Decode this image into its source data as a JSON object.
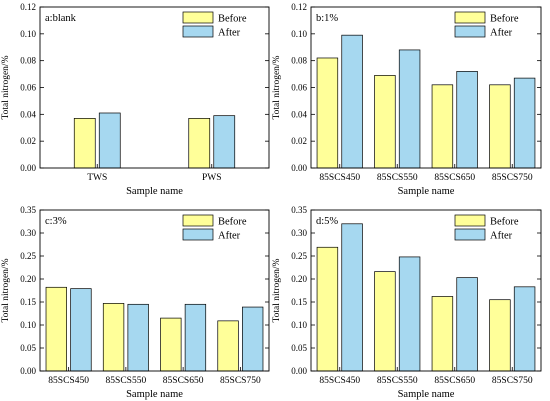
{
  "legend": {
    "before": "Before",
    "after": "After"
  },
  "colors": {
    "before": "#ffff99",
    "after": "#a6d8f0",
    "stroke": "#000000"
  },
  "chart_data": [
    {
      "type": "bar",
      "title": "a:blank",
      "xlabel": "Sample name",
      "ylabel": "Total nitrogen/%",
      "ylim": [
        0,
        0.12
      ],
      "yticks": [
        "0.00",
        "0.02",
        "0.04",
        "0.06",
        "0.08",
        "0.10",
        "0.12"
      ],
      "categories": [
        "TWS",
        "PWS"
      ],
      "legend_position": "top-right",
      "series": [
        {
          "name": "Before",
          "values": [
            0.037,
            0.037
          ]
        },
        {
          "name": "After",
          "values": [
            0.041,
            0.039
          ]
        }
      ]
    },
    {
      "type": "bar",
      "title": "b:1%",
      "xlabel": "Sample name",
      "ylabel": "Total nitrogen/%",
      "ylim": [
        0,
        0.12
      ],
      "yticks": [
        "0.00",
        "0.02",
        "0.04",
        "0.06",
        "0.08",
        "0.10",
        "0.12"
      ],
      "categories": [
        "85SCS450",
        "85SCS550",
        "85SCS650",
        "85SCS750"
      ],
      "legend_position": "top-right",
      "series": [
        {
          "name": "Before",
          "values": [
            0.082,
            0.069,
            0.062,
            0.062
          ]
        },
        {
          "name": "After",
          "values": [
            0.099,
            0.088,
            0.072,
            0.067
          ]
        }
      ]
    },
    {
      "type": "bar",
      "title": "c:3%",
      "xlabel": "Sample name",
      "ylabel": "Total nitrogen/%",
      "ylim": [
        0,
        0.35
      ],
      "yticks": [
        "0.00",
        "0.05",
        "0.10",
        "0.15",
        "0.20",
        "0.25",
        "0.30",
        "0.35"
      ],
      "categories": [
        "85SCS450",
        "85SCS550",
        "85SCS650",
        "85SCS750"
      ],
      "legend_position": "top-right",
      "series": [
        {
          "name": "Before",
          "values": [
            0.182,
            0.147,
            0.115,
            0.109
          ]
        },
        {
          "name": "After",
          "values": [
            0.179,
            0.145,
            0.145,
            0.139
          ]
        }
      ]
    },
    {
      "type": "bar",
      "title": "d:5%",
      "xlabel": "Sample name",
      "ylabel": "Total nitrogen/%",
      "ylim": [
        0,
        0.35
      ],
      "yticks": [
        "0.00",
        "0.05",
        "0.10",
        "0.15",
        "0.20",
        "0.25",
        "0.30",
        "0.35"
      ],
      "categories": [
        "85SCS450",
        "85SCS550",
        "85SCS650",
        "85SCS750"
      ],
      "legend_position": "top-right",
      "series": [
        {
          "name": "Before",
          "values": [
            0.269,
            0.216,
            0.162,
            0.155
          ]
        },
        {
          "name": "After",
          "values": [
            0.32,
            0.248,
            0.203,
            0.183
          ]
        }
      ]
    }
  ]
}
